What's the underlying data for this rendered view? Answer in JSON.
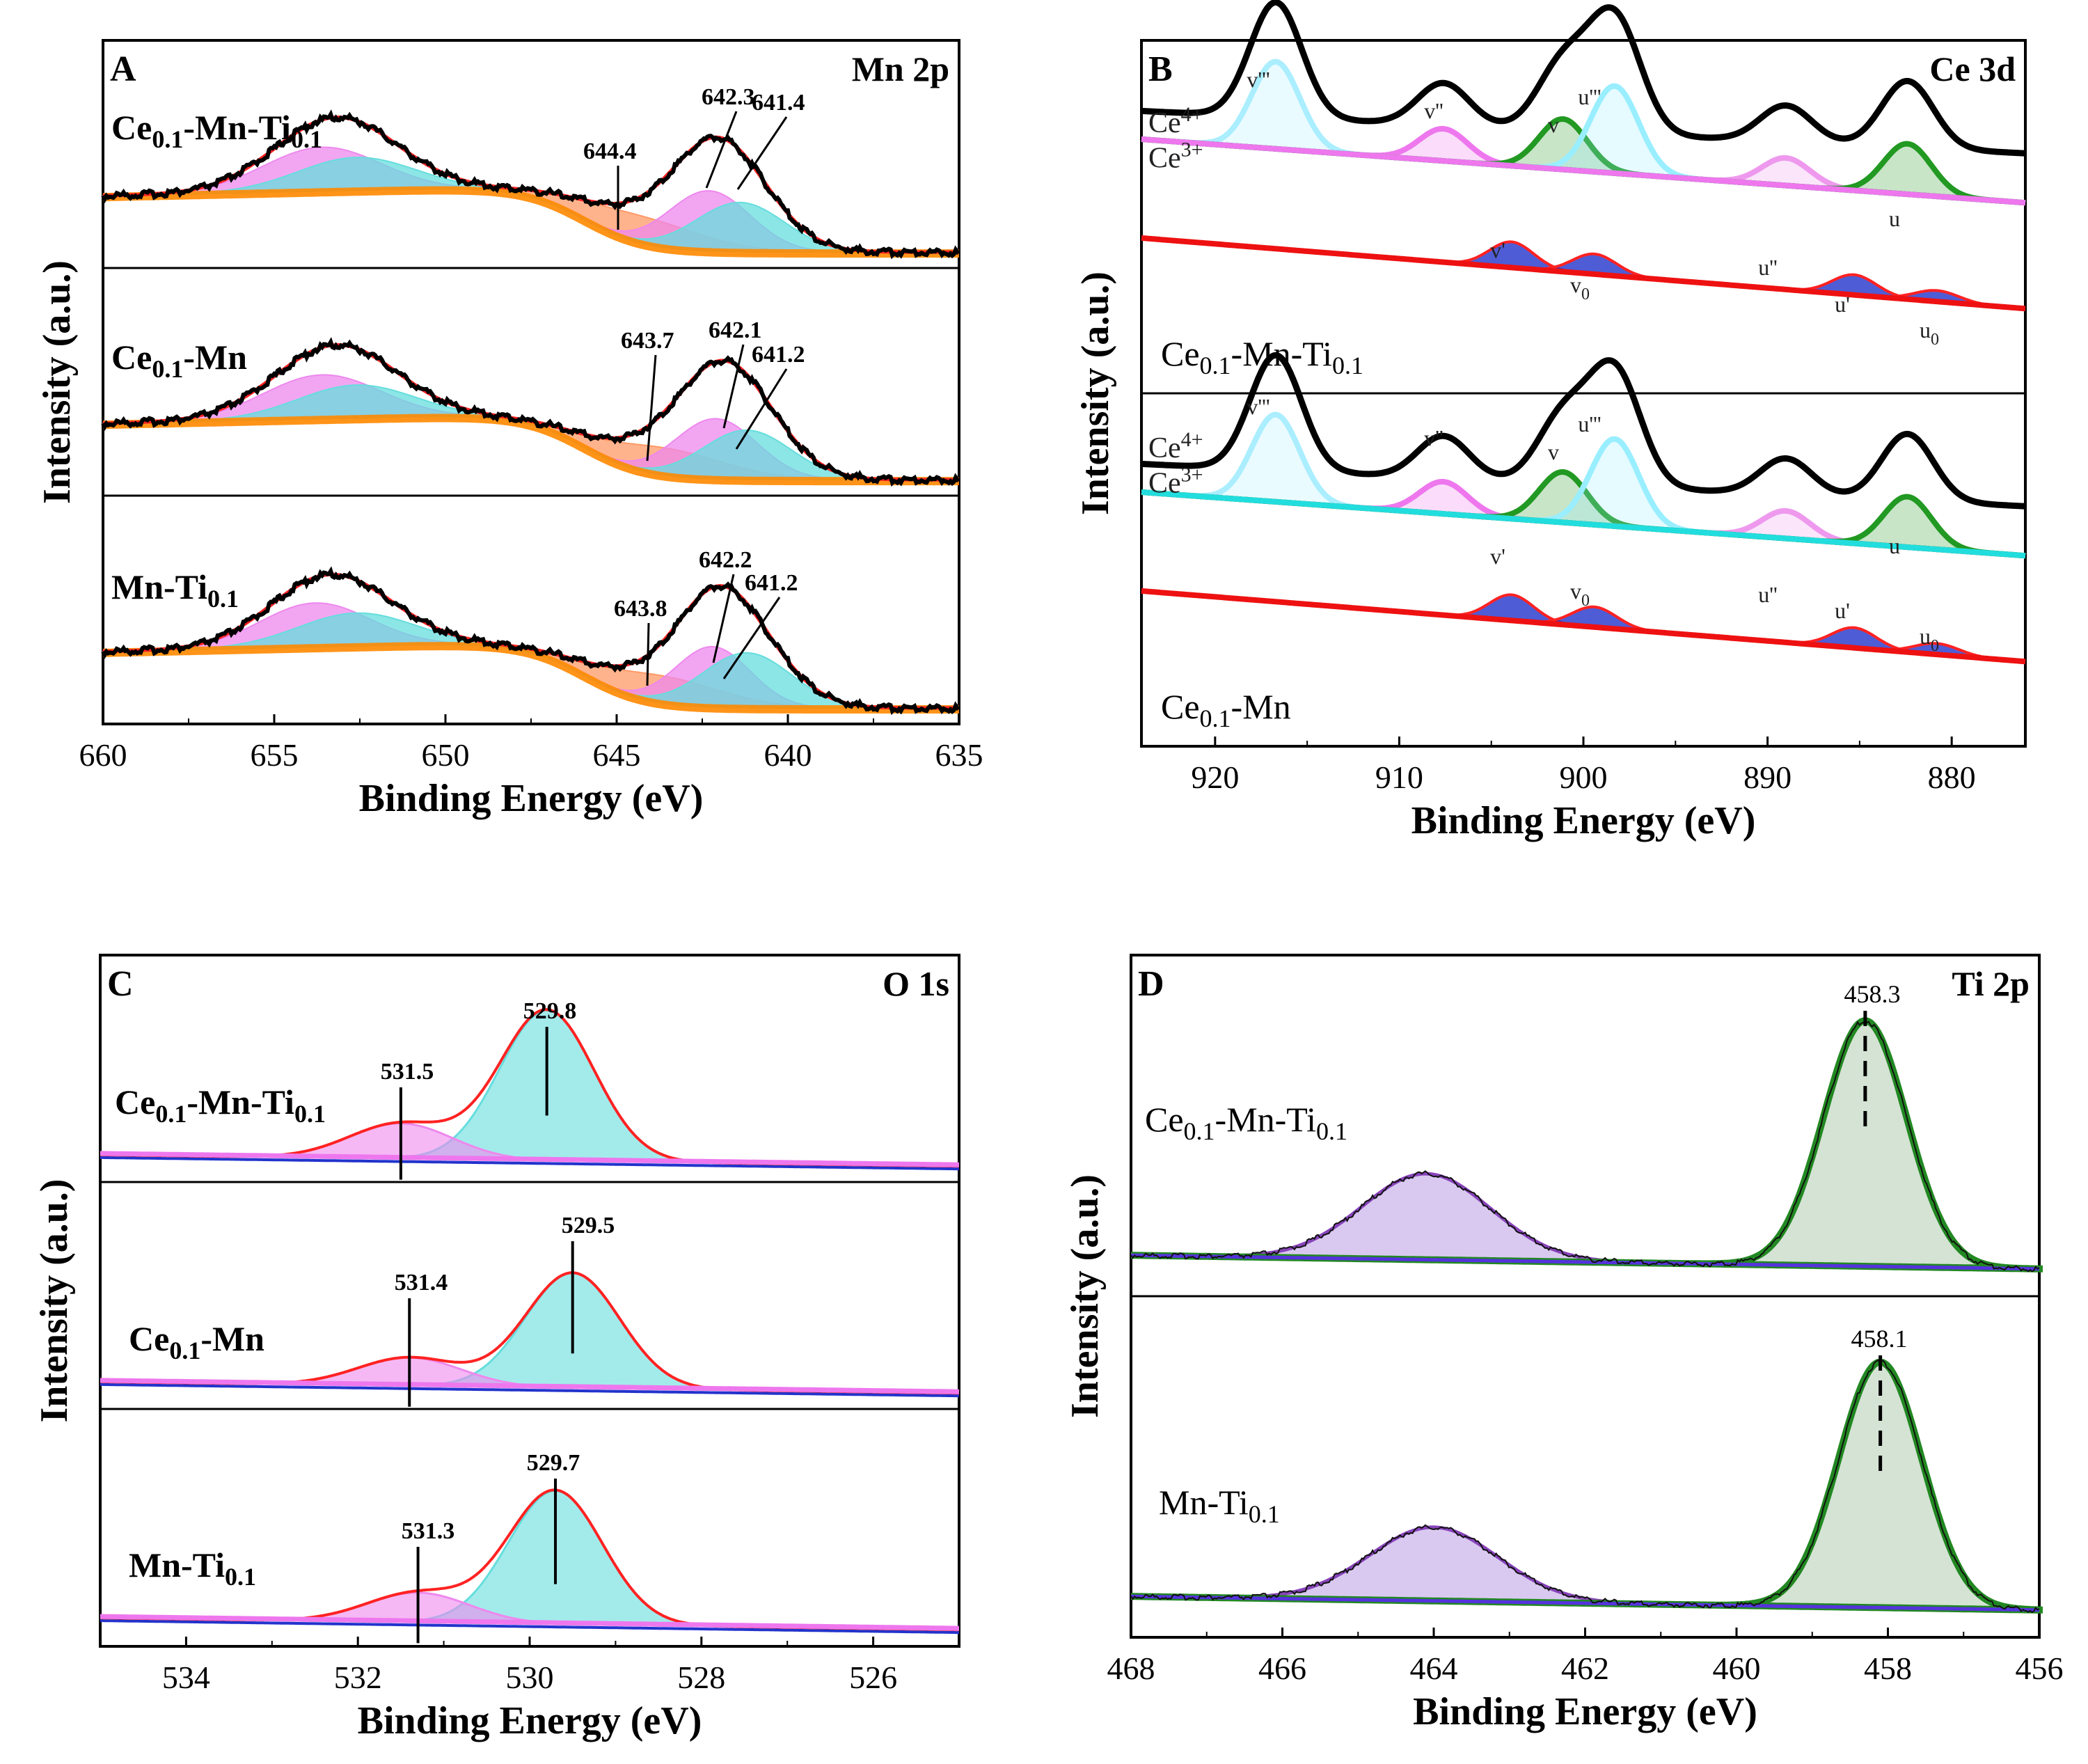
{
  "figure": {
    "shared_ylabel": "Intensity (a.u.)",
    "shared_xlabel": "Binding Energy (eV)"
  },
  "chart_data": [
    {
      "id": "A",
      "type": "line",
      "letter": "A",
      "corner": "Mn 2p",
      "title": "Mn 2p XPS spectra",
      "xlabel": "Binding Energy (eV)",
      "ylabel": "Intensity (a.u.)",
      "xlim": [
        660,
        635
      ],
      "xticks": [
        660,
        655,
        650,
        645,
        640,
        635
      ],
      "sub_panels": [
        {
          "sample": "Ce0.1-Mn-Ti0.1",
          "sample_parts": [
            "Ce",
            "0.1",
            "-Mn-Ti",
            "0.1"
          ],
          "peak_labels": [
            "644.4",
            "642.3",
            "641.4"
          ],
          "peaks": [
            {
              "center": 653.6,
              "width": 1.7,
              "height": 0.4,
              "color": "#ee88ee"
            },
            {
              "center": 652.6,
              "width": 1.7,
              "height": 0.3,
              "color": "#66dddd"
            },
            {
              "center": 644.4,
              "width": 1.8,
              "height": 0.25,
              "color": "#ff9966"
            },
            {
              "center": 642.3,
              "width": 1.2,
              "height": 0.55,
              "color": "#ee88ee"
            },
            {
              "center": 641.4,
              "width": 1.3,
              "height": 0.45,
              "color": "#66dddd"
            }
          ]
        },
        {
          "sample": "Ce0.1-Mn",
          "sample_parts": [
            "Ce",
            "0.1",
            "-Mn"
          ],
          "peak_labels": [
            "643.7",
            "642.1",
            "641.2"
          ],
          "peaks": [
            {
              "center": 653.6,
              "width": 1.7,
              "height": 0.4,
              "color": "#ee88ee"
            },
            {
              "center": 652.6,
              "width": 1.7,
              "height": 0.3,
              "color": "#66dddd"
            },
            {
              "center": 643.7,
              "width": 1.8,
              "height": 0.25,
              "color": "#ff9966"
            },
            {
              "center": 642.1,
              "width": 1.2,
              "height": 0.55,
              "color": "#ee88ee"
            },
            {
              "center": 641.2,
              "width": 1.3,
              "height": 0.45,
              "color": "#66dddd"
            }
          ]
        },
        {
          "sample": "Mn-Ti0.1",
          "sample_parts": [
            "Mn-Ti",
            "0.1"
          ],
          "peak_labels": [
            "643.8",
            "642.2",
            "641.2"
          ],
          "peaks": [
            {
              "center": 653.8,
              "width": 1.6,
              "height": 0.4,
              "color": "#ee88ee"
            },
            {
              "center": 652.6,
              "width": 1.7,
              "height": 0.3,
              "color": "#66dddd"
            },
            {
              "center": 643.8,
              "width": 1.8,
              "height": 0.25,
              "color": "#ff9966"
            },
            {
              "center": 642.2,
              "width": 1.1,
              "height": 0.55,
              "color": "#ee88ee"
            },
            {
              "center": 641.2,
              "width": 1.3,
              "height": 0.5,
              "color": "#66dddd"
            }
          ]
        }
      ]
    },
    {
      "id": "B",
      "type": "line",
      "letter": "B",
      "corner": "Ce 3d",
      "title": "Ce 3d XPS spectra",
      "xlabel": "Binding Energy (eV)",
      "ylabel": "Intensity (a.u.)",
      "xlim": [
        924,
        876
      ],
      "xticks": [
        920,
        910,
        900,
        890,
        880
      ],
      "state_labels": [
        "Ce",
        "4+",
        "Ce",
        "3+"
      ],
      "component_labels": [
        "v'''",
        "v''",
        "v",
        "u'''",
        "u''",
        "u",
        "v'",
        "v",
        "0",
        "u'",
        "u",
        "0"
      ],
      "components": [
        {
          "name": "v'''",
          "center": 916.7,
          "state": "Ce4+"
        },
        {
          "name": "v''",
          "center": 907.6,
          "state": "Ce4+"
        },
        {
          "name": "v",
          "center": 901.1,
          "state": "Ce4+"
        },
        {
          "name": "u'''",
          "center": 898.3,
          "state": "Ce4+"
        },
        {
          "name": "u''",
          "center": 889.0,
          "state": "Ce4+"
        },
        {
          "name": "u",
          "center": 882.4,
          "state": "Ce4+"
        },
        {
          "name": "v'",
          "center": 903.9,
          "state": "Ce3+"
        },
        {
          "name": "v0",
          "center": 899.4,
          "state": "Ce3+"
        },
        {
          "name": "u'",
          "center": 885.3,
          "state": "Ce3+"
        },
        {
          "name": "u0",
          "center": 880.8,
          "state": "Ce3+"
        }
      ],
      "sub_panels": [
        {
          "sample": "Ce0.1-Mn-Ti0.1",
          "sample_parts": [
            "Ce",
            "0.1",
            "-Mn-Ti",
            "0.1"
          ]
        },
        {
          "sample": "Ce0.1-Mn",
          "sample_parts": [
            "Ce",
            "0.1",
            "-Mn"
          ]
        }
      ]
    },
    {
      "id": "C",
      "type": "line",
      "letter": "C",
      "corner": "O 1s",
      "title": "O 1s XPS spectra",
      "xlabel": "Binding Energy (eV)",
      "ylabel": "Intensity (a.u.)",
      "xlim": [
        535,
        525
      ],
      "xticks": [
        534,
        532,
        530,
        528,
        526
      ],
      "sub_panels": [
        {
          "sample": "Ce0.1-Mn-Ti0.1",
          "sample_parts": [
            "Ce",
            "0.1",
            "-Mn-Ti",
            "0.1"
          ],
          "peak_labels": [
            "531.5",
            "529.8"
          ],
          "peaks": [
            {
              "center": 531.5,
              "height": 0.2
            },
            {
              "center": 529.8,
              "height": 0.85
            }
          ]
        },
        {
          "sample": "Ce0.1-Mn",
          "sample_parts": [
            "Ce",
            "0.1",
            "-Mn"
          ],
          "peak_labels": [
            "531.4",
            "529.5"
          ],
          "peaks": [
            {
              "center": 531.4,
              "height": 0.16
            },
            {
              "center": 529.5,
              "height": 0.65
            }
          ]
        },
        {
          "sample": "Mn-Ti0.1",
          "sample_parts": [
            "Mn-Ti",
            "0.1"
          ],
          "peak_labels": [
            "531.3",
            "529.7"
          ],
          "peaks": [
            {
              "center": 531.3,
              "height": 0.16
            },
            {
              "center": 529.7,
              "height": 0.72
            }
          ]
        }
      ]
    },
    {
      "id": "D",
      "type": "line",
      "letter": "D",
      "corner": "Ti 2p",
      "title": "Ti 2p XPS spectra",
      "xlabel": "Binding Energy (eV)",
      "ylabel": "Intensity (a.u.)",
      "xlim": [
        468,
        456
      ],
      "xticks": [
        468,
        466,
        464,
        462,
        460,
        458,
        456
      ],
      "sub_panels": [
        {
          "sample": "Ce0.1-Mn-Ti0.1",
          "sample_parts": [
            "Ce",
            "0.1",
            "-Mn-Ti",
            "0.1"
          ],
          "peak_labels": [
            "458.3"
          ],
          "peaks": [
            {
              "center": 464.1,
              "height": 0.35,
              "color": "#aa88dd"
            },
            {
              "center": 458.3,
              "height": 1.0,
              "color": "#228822"
            }
          ]
        },
        {
          "sample": "Mn-Ti0.1",
          "sample_parts": [
            "Mn-Ti",
            "0.1"
          ],
          "peak_labels": [
            "458.1"
          ],
          "peaks": [
            {
              "center": 464.0,
              "height": 0.3,
              "color": "#aa88dd"
            },
            {
              "center": 458.1,
              "height": 1.0,
              "color": "#228822"
            }
          ]
        }
      ]
    }
  ]
}
